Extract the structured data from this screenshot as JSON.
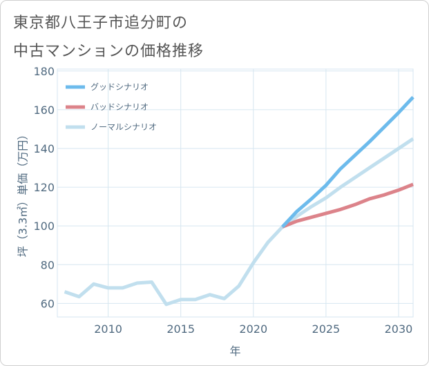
{
  "title": {
    "line1": "東京都八王子市追分町の",
    "line2": "中古マンションの価格推移"
  },
  "colors": {
    "good": "#6dbbec",
    "bad": "#dc838a",
    "normal": "#c1dfee",
    "grid": "#d6e6f0",
    "axis": "#506a80"
  },
  "chart_data": {
    "type": "line",
    "title": "東京都八王子市追分町の中古マンションの価格推移",
    "xlabel": "年",
    "ylabel": "坪（3.3㎡）単価（万円）",
    "xlim": [
      2006.5,
      2031
    ],
    "ylim": [
      53,
      181
    ],
    "x_ticks": [
      2010,
      2015,
      2020,
      2025,
      2030
    ],
    "y_ticks": [
      60,
      80,
      100,
      120,
      140,
      160,
      180
    ],
    "x_tick_labels": [
      "2010",
      "2015",
      "2020",
      "2025",
      "2030"
    ],
    "y_tick_labels": [
      "60",
      "80",
      "100",
      "120",
      "140",
      "160",
      "180"
    ],
    "legend_position": "top-left",
    "series": [
      {
        "key": "good",
        "name": "グッドシナリオ",
        "x": [
          2022,
          2023,
          2024,
          2025,
          2026,
          2027,
          2028,
          2029,
          2030,
          2031
        ],
        "values": [
          99.5,
          107.5,
          114,
          121,
          129.5,
          136.5,
          143.5,
          151,
          158.5,
          166.5
        ]
      },
      {
        "key": "bad",
        "name": "バッドシナリオ",
        "x": [
          2022,
          2023,
          2024,
          2025,
          2026,
          2027,
          2028,
          2029,
          2030,
          2031
        ],
        "values": [
          99.5,
          102.5,
          104.5,
          106.5,
          108.5,
          111,
          114,
          116,
          118.5,
          121.5
        ]
      },
      {
        "key": "normal",
        "name": "ノーマルシナリオ",
        "x": [
          2007,
          2008,
          2009,
          2010,
          2011,
          2012,
          2013,
          2014,
          2015,
          2016,
          2017,
          2018,
          2019,
          2020,
          2021,
          2022,
          2023,
          2024,
          2025,
          2026,
          2027,
          2028,
          2029,
          2030,
          2031
        ],
        "values": [
          66,
          63.5,
          70,
          68,
          68,
          70.5,
          71,
          59.5,
          62,
          62,
          64.5,
          62.5,
          69,
          81,
          91.5,
          99.5,
          105,
          110,
          114.5,
          120,
          125,
          130,
          135,
          140,
          145
        ]
      }
    ]
  }
}
